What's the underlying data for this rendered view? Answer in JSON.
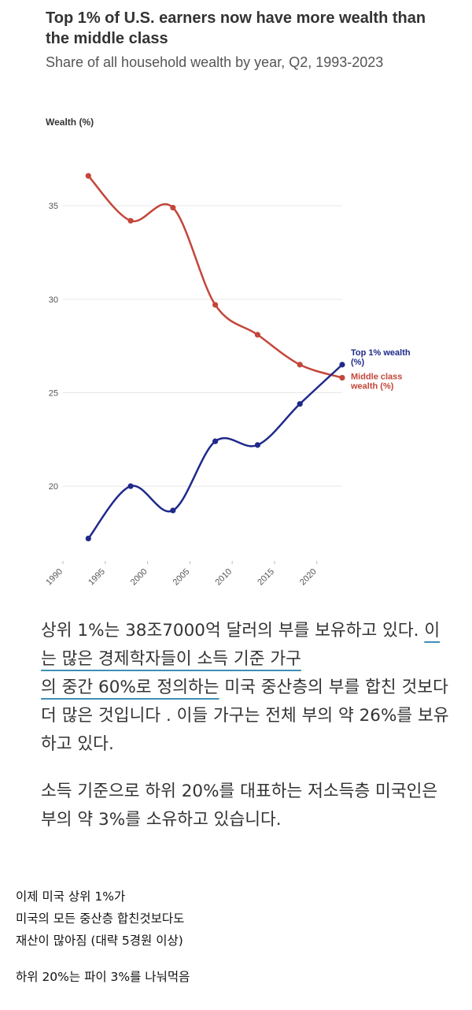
{
  "chart_data": {
    "type": "line",
    "title": "Top 1% of U.S. earners now have more wealth than the middle class",
    "subtitle": "Share of all household wealth by year, Q2, 1993-2023",
    "ylabel": "Wealth (%)",
    "xlabel": "",
    "xlim": [
      1990,
      2023
    ],
    "ylim": [
      16,
      38
    ],
    "x_ticks": [
      "1990",
      "1995",
      "2000",
      "2005",
      "2010",
      "2015",
      "2020"
    ],
    "y_ticks": [
      "20",
      "25",
      "30",
      "35"
    ],
    "grid": true,
    "series": [
      {
        "name": "Middle class wealth (%)",
        "color": "#c4463a",
        "label_lines": [
          "Middle class",
          "wealth (%)"
        ],
        "x": [
          1993,
          1998,
          2003,
          2008,
          2013,
          2018,
          2023
        ],
        "y": [
          36.6,
          34.2,
          34.9,
          29.7,
          28.1,
          26.5,
          25.8
        ]
      },
      {
        "name": "Top 1% wealth (%)",
        "color": "#1f2a8a",
        "label_lines": [
          "Top 1% wealth",
          "(%)"
        ],
        "x": [
          1993,
          1998,
          2003,
          2008,
          2013,
          2018,
          2023
        ],
        "y": [
          17.2,
          20.0,
          18.7,
          22.4,
          22.2,
          24.4,
          26.5
        ]
      }
    ]
  },
  "article": {
    "p1_a": "상위 1%는 38조7000억 달러의 부를 보유하고 있다. ",
    "p1_u1": "이는 많은 경제학자들이 소득 기준 가구",
    "p1_u2": "의 중간 60%로 정의하는",
    "p1_b": " 미국 중산층의 부를 합친 것보다 더 많은 것입니다 . 이들 가구는 전체 부의 약 26%를 보유하고 있다.",
    "p2": "소득 기준으로 하위 20%를 대표하는 저소득층 미국인은 부의 약 3%를 소유하고 있습니다."
  },
  "comment": {
    "line1": "이제 미국 상위 1%가",
    "line2": "미국의 모든 중산층 합친것보다도",
    "line3": "재산이 많아짐 (대략 5경원 이상)",
    "line4": "하위 20%는 파이 3%를 나눠먹음"
  }
}
